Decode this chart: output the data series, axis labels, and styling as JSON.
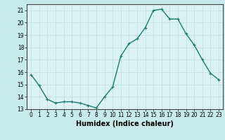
{
  "x": [
    0,
    1,
    2,
    3,
    4,
    5,
    6,
    7,
    8,
    9,
    10,
    11,
    12,
    13,
    14,
    15,
    16,
    17,
    18,
    19,
    20,
    21,
    22,
    23
  ],
  "y": [
    15.8,
    14.9,
    13.8,
    13.5,
    13.6,
    13.6,
    13.5,
    13.3,
    13.1,
    14.0,
    14.8,
    17.3,
    18.3,
    18.7,
    19.6,
    21.0,
    21.1,
    20.3,
    20.3,
    19.1,
    18.2,
    17.0,
    15.9,
    15.4
  ],
  "line_color": "#1a7a6e",
  "marker": "+",
  "marker_size": 3,
  "linewidth": 1.0,
  "xlabel": "Humidex (Indice chaleur)",
  "xlabel_fontsize": 7,
  "bg_color": "#c8eaea",
  "grid_color": "#c0dede",
  "plot_bg": "#daf2f2",
  "ylim": [
    13,
    21.5
  ],
  "xlim": [
    -0.5,
    23.5
  ],
  "yticks": [
    13,
    14,
    15,
    16,
    17,
    18,
    19,
    20,
    21
  ],
  "xticks": [
    0,
    1,
    2,
    3,
    4,
    5,
    6,
    7,
    8,
    9,
    10,
    11,
    12,
    13,
    14,
    15,
    16,
    17,
    18,
    19,
    20,
    21,
    22,
    23
  ],
  "tick_fontsize": 5.5,
  "border_color": "#444444",
  "markeredgewidth": 0.8
}
